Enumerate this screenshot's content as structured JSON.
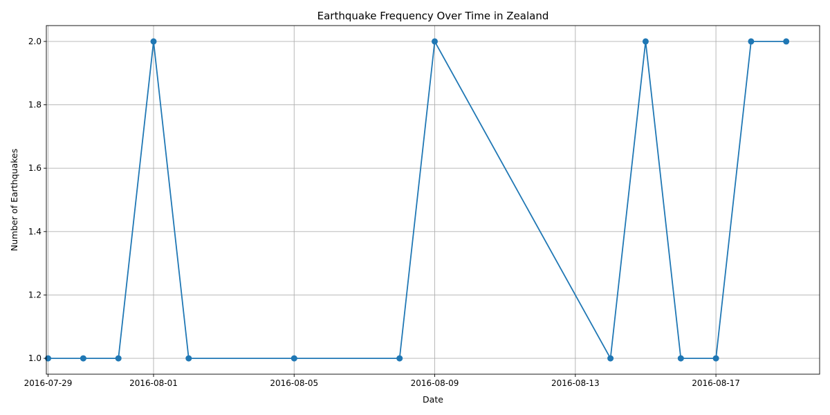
{
  "chart_data": {
    "type": "line",
    "title": "Earthquake Frequency Over Time in Zealand",
    "xlabel": "Date",
    "ylabel": "Number of Earthquakes",
    "x_tick_labels": [
      "2016-07-29",
      "2016-08-01",
      "2016-08-05",
      "2016-08-09",
      "2016-08-13",
      "2016-08-17"
    ],
    "y_tick_labels": [
      "1.0",
      "1.2",
      "1.4",
      "1.6",
      "1.8",
      "2.0"
    ],
    "ylim": [
      0.95,
      2.05
    ],
    "xlim": [
      "2016-07-28",
      "2016-08-20"
    ],
    "grid": true,
    "series": [
      {
        "color": "#1f77b4",
        "marker": "circle",
        "x": [
          "2016-07-29",
          "2016-07-30",
          "2016-07-31",
          "2016-08-01",
          "2016-08-02",
          "2016-08-05",
          "2016-08-08",
          "2016-08-09",
          "2016-08-14",
          "2016-08-15",
          "2016-08-16",
          "2016-08-17",
          "2016-08-18",
          "2016-08-19"
        ],
        "values": [
          1,
          1,
          1,
          2,
          1,
          1,
          1,
          2,
          1,
          2,
          1,
          1,
          2,
          2
        ]
      }
    ]
  }
}
